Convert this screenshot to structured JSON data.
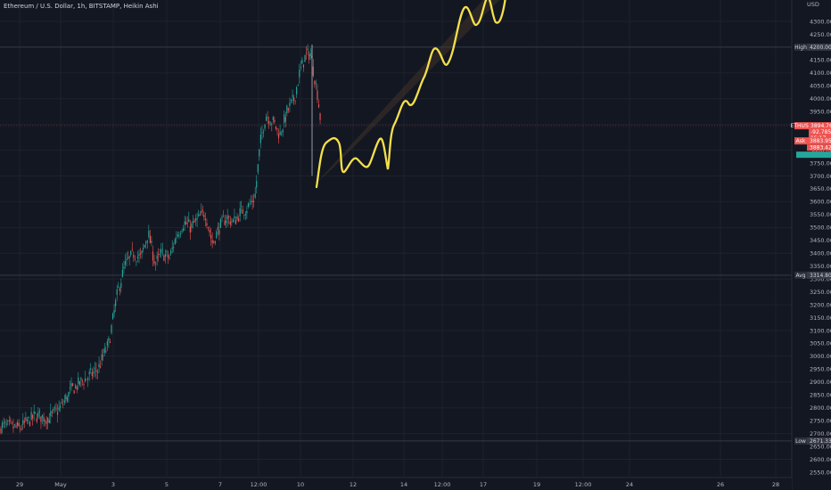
{
  "header": {
    "title": "Ethereum / U.S. Dollar, 1h, BITSTAMP, Heikin Ashi"
  },
  "colors": {
    "background": "#131722",
    "up": "#26a69a",
    "down": "#ef5350",
    "drawing": "#f5e04a",
    "channel": "#4a3a2a",
    "grid": "#1e222d",
    "level_line": "#363a45",
    "axis_text": "#b2b5be"
  },
  "price_axis": {
    "currency_label": "USD",
    "min": 2500,
    "max": 4350,
    "step": 50,
    "visible_top_label": "4300.00"
  },
  "time_axis": {
    "labels": [
      "29",
      "May",
      "3",
      "5",
      "7",
      "12:00",
      "10",
      "12",
      "14",
      "12:00",
      "17",
      "19",
      "12:00",
      "24",
      "26",
      "28"
    ]
  },
  "markers": {
    "high": {
      "label": "High",
      "value": "4200.00"
    },
    "avg": {
      "label": "Avg",
      "value": "3314.80"
    },
    "low": {
      "label": "Low",
      "value": "2671.33"
    }
  },
  "price_tags": {
    "symbol": "ETHUSD",
    "last_price": "3894.76",
    "change": "-92.785",
    "countdown": "15:17",
    "ask_label": "Ask",
    "ask_price": "3883.95",
    "bid_price": "3883.42"
  },
  "chart_data": {
    "type": "candlestick",
    "title": "Ethereum / U.S. Dollar, 1h, BITSTAMP, Heikin Ashi",
    "ylabel": "USD",
    "ylim": [
      2500,
      4350
    ],
    "x_tick_labels": [
      "29",
      "May",
      "3",
      "5",
      "7",
      "12:00",
      "10",
      "12",
      "14",
      "12:00",
      "17",
      "19",
      "12:00",
      "24",
      "26",
      "28"
    ],
    "anchors": [
      {
        "x": "29",
        "close": 2730
      },
      {
        "x": "May",
        "close": 2770
      },
      {
        "x": "2",
        "close": 2900
      },
      {
        "x": "3",
        "close": 3300
      },
      {
        "x": "4",
        "close": 3400
      },
      {
        "x": "5",
        "close": 3500
      },
      {
        "x": "6",
        "close": 3550
      },
      {
        "x": "7",
        "close": 3480
      },
      {
        "x": "8",
        "close": 3650
      },
      {
        "x": "12:00",
        "close": 3950
      },
      {
        "x": "9",
        "close": 4000
      },
      {
        "x": "10",
        "close": 4150
      },
      {
        "x": "10 12:00",
        "close": 3900
      }
    ],
    "high": 4200.0,
    "low": 2671.33,
    "avg": 3314.8,
    "projection": {
      "description_points": [
        {
          "x": "10",
          "y": 3665
        },
        {
          "x": "11",
          "y": 3790
        },
        {
          "x": "12",
          "y": 3760
        },
        {
          "x": "13",
          "y": 3760
        },
        {
          "x": "14",
          "y": 4030
        },
        {
          "x": "15",
          "y": 4200
        },
        {
          "x": "16",
          "y": 4320
        },
        {
          "x": "17",
          "y": 4300
        }
      ]
    }
  }
}
